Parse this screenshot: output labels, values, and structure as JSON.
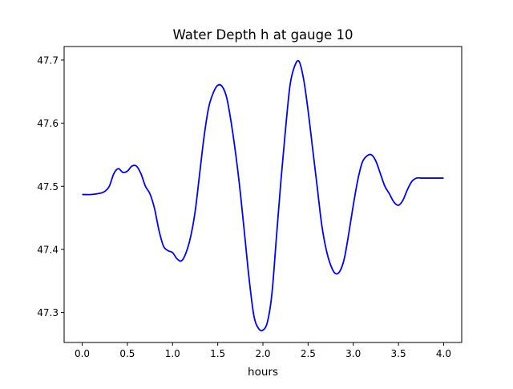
{
  "chart_data": {
    "type": "line",
    "title": "Water Depth h at gauge 10",
    "xlabel": "hours",
    "ylabel": "",
    "xlim": [
      -0.2,
      4.2
    ],
    "ylim": [
      47.2525,
      47.7215
    ],
    "xticks": [
      0.0,
      0.5,
      1.0,
      1.5,
      2.0,
      2.5,
      3.0,
      3.5,
      4.0
    ],
    "xtick_labels": [
      "0.0",
      "0.5",
      "1.0",
      "1.5",
      "2.0",
      "2.5",
      "3.0",
      "3.5",
      "4.0"
    ],
    "yticks": [
      47.3,
      47.4,
      47.5,
      47.6,
      47.7
    ],
    "ytick_labels": [
      "47.3",
      "47.4",
      "47.5",
      "47.6",
      "47.7"
    ],
    "grid": false,
    "series": [
      {
        "color": "#0000ff",
        "x": [
          0.0,
          0.1,
          0.2,
          0.25,
          0.3,
          0.35,
          0.4,
          0.45,
          0.5,
          0.55,
          0.6,
          0.65,
          0.7,
          0.75,
          0.8,
          0.85,
          0.9,
          0.95,
          1.0,
          1.05,
          1.1,
          1.15,
          1.2,
          1.25,
          1.3,
          1.35,
          1.4,
          1.45,
          1.5,
          1.55,
          1.6,
          1.65,
          1.7,
          1.75,
          1.8,
          1.85,
          1.9,
          1.95,
          2.0,
          2.05,
          2.1,
          2.15,
          2.2,
          2.25,
          2.3,
          2.35,
          2.4,
          2.45,
          2.5,
          2.55,
          2.6,
          2.65,
          2.7,
          2.75,
          2.8,
          2.85,
          2.9,
          2.95,
          3.0,
          3.05,
          3.1,
          3.15,
          3.2,
          3.25,
          3.3,
          3.35,
          3.4,
          3.45,
          3.5,
          3.55,
          3.6,
          3.65,
          3.7,
          3.75,
          3.8,
          3.85,
          3.9,
          3.95,
          4.0
        ],
        "y": [
          47.487,
          47.487,
          47.489,
          47.492,
          47.5,
          47.52,
          47.528,
          47.522,
          47.524,
          47.532,
          47.532,
          47.52,
          47.5,
          47.488,
          47.465,
          47.43,
          47.405,
          47.398,
          47.395,
          47.385,
          47.382,
          47.395,
          47.42,
          47.46,
          47.52,
          47.58,
          47.625,
          47.648,
          47.66,
          47.658,
          47.64,
          47.6,
          47.55,
          47.49,
          47.42,
          47.35,
          47.295,
          47.275,
          47.272,
          47.285,
          47.33,
          47.42,
          47.51,
          47.59,
          47.66,
          47.69,
          47.698,
          47.67,
          47.62,
          47.56,
          47.5,
          47.44,
          47.4,
          47.375,
          47.362,
          47.365,
          47.385,
          47.425,
          47.47,
          47.51,
          47.538,
          47.548,
          47.55,
          47.54,
          47.52,
          47.5,
          47.488,
          47.475,
          47.47,
          47.478,
          47.495,
          47.508,
          47.513,
          47.513,
          47.513,
          47.513,
          47.513,
          47.513,
          47.513
        ]
      }
    ]
  }
}
